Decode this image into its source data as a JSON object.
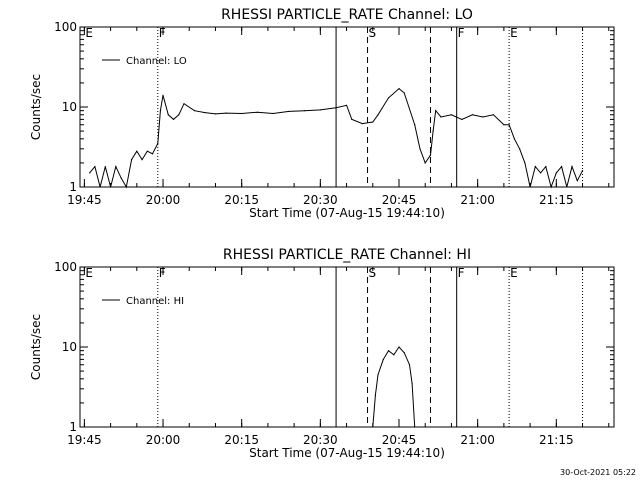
{
  "footer": {
    "timestamp": "30-Oct-2021 05:22"
  },
  "chart_data": [
    {
      "type": "line",
      "title": "RHESSI PARTICLE_RATE Channel: LO",
      "xlabel": "Start Time (07-Aug-15 19:44:10)",
      "ylabel": "Counts/sec",
      "y_scale": "log",
      "ylim": [
        1,
        100
      ],
      "y_ticks": [
        {
          "value": 1,
          "label": "1"
        },
        {
          "value": 10,
          "label": "10"
        },
        {
          "value": 100,
          "label": "100"
        }
      ],
      "xlim": [
        "19:44:10",
        "21:26"
      ],
      "x_ticks": [
        {
          "t": "19:45",
          "label": "19:45"
        },
        {
          "t": "20:00",
          "label": "20:00"
        },
        {
          "t": "20:15",
          "label": "20:15"
        },
        {
          "t": "20:30",
          "label": "20:30"
        },
        {
          "t": "20:45",
          "label": "20:45"
        },
        {
          "t": "21:00",
          "label": "21:00"
        },
        {
          "t": "21:15",
          "label": "21:15"
        }
      ],
      "legend": {
        "position": "top-left",
        "entries": [
          "Channel: LO"
        ]
      },
      "markers": [
        {
          "t": "19:45",
          "label": "E",
          "style": "none"
        },
        {
          "t": "19:59",
          "label": "F",
          "style": "dotted"
        },
        {
          "t": "20:33",
          "label": "",
          "style": "solid"
        },
        {
          "t": "20:39",
          "label": "S",
          "style": "dashed"
        },
        {
          "t": "20:51",
          "label": "",
          "style": "dashed"
        },
        {
          "t": "20:56",
          "label": "F",
          "style": "solid"
        },
        {
          "t": "21:06",
          "label": "E",
          "style": "dotted"
        },
        {
          "t": "21:20",
          "label": "",
          "style": "dotted"
        }
      ],
      "series": [
        {
          "name": "Channel: LO",
          "points": [
            [
              "19:46",
              1.5
            ],
            [
              "19:47",
              1.8
            ],
            [
              "19:48",
              1.0
            ],
            [
              "19:49",
              1.8
            ],
            [
              "19:50",
              1.0
            ],
            [
              "19:51",
              1.8
            ],
            [
              "19:52",
              1.3
            ],
            [
              "19:53",
              1.0
            ],
            [
              "19:54",
              2.2
            ],
            [
              "19:55",
              2.8
            ],
            [
              "19:56",
              2.2
            ],
            [
              "19:57",
              2.8
            ],
            [
              "19:58",
              2.6
            ],
            [
              "19:59",
              3.5
            ],
            [
              "19:59:30",
              9.0
            ],
            [
              "20:00",
              14
            ],
            [
              "20:01",
              8.0
            ],
            [
              "20:02",
              7.0
            ],
            [
              "20:03",
              8.0
            ],
            [
              "20:04",
              11
            ],
            [
              "20:06",
              9.0
            ],
            [
              "20:08",
              8.5
            ],
            [
              "20:10",
              8.2
            ],
            [
              "20:12",
              8.4
            ],
            [
              "20:15",
              8.3
            ],
            [
              "20:18",
              8.6
            ],
            [
              "20:21",
              8.3
            ],
            [
              "20:24",
              8.8
            ],
            [
              "20:27",
              9.0
            ],
            [
              "20:30",
              9.2
            ],
            [
              "20:33",
              9.8
            ],
            [
              "20:35",
              10.5
            ],
            [
              "20:36",
              7.0
            ],
            [
              "20:38",
              6.2
            ],
            [
              "20:40",
              6.5
            ],
            [
              "20:41",
              8.0
            ],
            [
              "20:43",
              13
            ],
            [
              "20:45",
              17
            ],
            [
              "20:46",
              15
            ],
            [
              "20:48",
              6.0
            ],
            [
              "20:49",
              3.0
            ],
            [
              "20:50",
              2.0
            ],
            [
              "20:51",
              2.5
            ],
            [
              "20:51:30",
              5.0
            ],
            [
              "20:52",
              9.0
            ],
            [
              "20:53",
              7.5
            ],
            [
              "20:55",
              8.0
            ],
            [
              "20:57",
              7.0
            ],
            [
              "20:59",
              8.0
            ],
            [
              "21:01",
              7.5
            ],
            [
              "21:03",
              8.0
            ],
            [
              "21:05",
              6.0
            ],
            [
              "21:06",
              6.0
            ],
            [
              "21:07",
              4.0
            ],
            [
              "21:08",
              3.0
            ],
            [
              "21:09",
              2.0
            ],
            [
              "21:10",
              1.0
            ],
            [
              "21:11",
              1.8
            ],
            [
              "21:12",
              1.5
            ],
            [
              "21:13",
              1.8
            ],
            [
              "21:14",
              1.0
            ],
            [
              "21:15",
              1.5
            ],
            [
              "21:16",
              1.8
            ],
            [
              "21:17",
              1.0
            ],
            [
              "21:18",
              1.8
            ],
            [
              "21:19",
              1.2
            ],
            [
              "21:20",
              1.6
            ]
          ]
        }
      ]
    },
    {
      "type": "line",
      "title": "RHESSI PARTICLE_RATE Channel: HI",
      "xlabel": "Start Time (07-Aug-15 19:44:10)",
      "ylabel": "Counts/sec",
      "y_scale": "log",
      "ylim": [
        1,
        100
      ],
      "y_ticks": [
        {
          "value": 1,
          "label": "1"
        },
        {
          "value": 10,
          "label": "10"
        },
        {
          "value": 100,
          "label": "100"
        }
      ],
      "xlim": [
        "19:44:10",
        "21:26"
      ],
      "x_ticks": [
        {
          "t": "19:45",
          "label": "19:45"
        },
        {
          "t": "20:00",
          "label": "20:00"
        },
        {
          "t": "20:15",
          "label": "20:15"
        },
        {
          "t": "20:30",
          "label": "20:30"
        },
        {
          "t": "20:45",
          "label": "20:45"
        },
        {
          "t": "21:00",
          "label": "21:00"
        },
        {
          "t": "21:15",
          "label": "21:15"
        }
      ],
      "legend": {
        "position": "top-left",
        "entries": [
          "Channel: HI"
        ]
      },
      "markers": [
        {
          "t": "19:45",
          "label": "E",
          "style": "none"
        },
        {
          "t": "19:59",
          "label": "F",
          "style": "dotted"
        },
        {
          "t": "20:33",
          "label": "",
          "style": "solid"
        },
        {
          "t": "20:39",
          "label": "S",
          "style": "dashed"
        },
        {
          "t": "20:51",
          "label": "",
          "style": "dashed"
        },
        {
          "t": "20:56",
          "label": "F",
          "style": "solid"
        },
        {
          "t": "21:06",
          "label": "E",
          "style": "dotted"
        },
        {
          "t": "21:20",
          "label": "",
          "style": "dotted"
        }
      ],
      "series": [
        {
          "name": "Channel: HI",
          "points": [
            [
              "20:40",
              1.0
            ],
            [
              "20:40:30",
              2.5
            ],
            [
              "20:41",
              4.5
            ],
            [
              "20:42",
              7.0
            ],
            [
              "20:43",
              9.0
            ],
            [
              "20:44",
              8.0
            ],
            [
              "20:45",
              10
            ],
            [
              "20:46",
              8.5
            ],
            [
              "20:47",
              6.0
            ],
            [
              "20:47:30",
              3.5
            ],
            [
              "20:48",
              1.0
            ]
          ]
        }
      ]
    }
  ]
}
